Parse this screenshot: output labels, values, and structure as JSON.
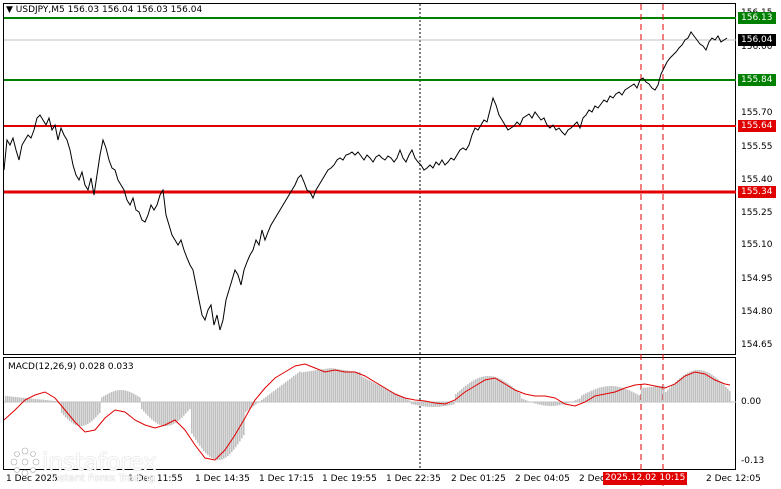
{
  "chart": {
    "symbol_label": "USDJPY,M5  156.03 156.04 156.03 156.04",
    "macd_label": "MACD(12,26,9) 0.028 0.033",
    "colors": {
      "price_line": "#000000",
      "support_line": "#e00000",
      "target_line": "#008000",
      "macd_histogram": "#c0c0c0",
      "macd_signal": "#e00000",
      "vertical_marker": "#e00000",
      "grid": "#000000"
    },
    "levels": [
      {
        "label": "156.13",
        "value": 156.13,
        "color": "#008000"
      },
      {
        "label": "155.84",
        "value": 155.84,
        "color": "#008000"
      },
      {
        "label": "155.64",
        "value": 155.64,
        "color": "#e00000"
      },
      {
        "label": "155.34",
        "value": 155.34,
        "color": "#e00000"
      }
    ],
    "current_price": {
      "label": "156.04",
      "value": 156.04
    },
    "price_axis_ticks": [
      "156.15",
      "156.00",
      "155.70",
      "155.55",
      "155.40",
      "155.25",
      "155.10",
      "154.95",
      "154.80",
      "154.65"
    ],
    "macd_axis_ticks": [
      "0.00",
      "-0.13"
    ],
    "time_labels": [
      "1 Dec 2025",
      "1 Dec 11:55",
      "1 Dec 14:35",
      "1 Dec 17:15",
      "1 Dec 19:55",
      "1 Dec 22:35",
      "2 Dec 01:25",
      "2 Dec 04:05",
      "2 Dec 06:45",
      "2 Dec 12:05"
    ],
    "highlighted_time": "2025.12.02 10:15",
    "watermark": {
      "name": "instaforex",
      "tagline": "Instant Forex Trading"
    }
  },
  "chart_data": {
    "type": "line",
    "title": "USDJPY,M5",
    "ylim": [
      154.6,
      156.2
    ],
    "series": [
      {
        "name": "USDJPY",
        "x": [
          0,
          6,
          12,
          18,
          24,
          30,
          36,
          42,
          48,
          54,
          60,
          66,
          72,
          78,
          84,
          90,
          96,
          102,
          108,
          114,
          120,
          126,
          132,
          138,
          144,
          150,
          156,
          162,
          168,
          174,
          180,
          186,
          192,
          198,
          204,
          210,
          216,
          222,
          228,
          234,
          240,
          246,
          252,
          258,
          264,
          270,
          276,
          282,
          288,
          294,
          300,
          306,
          312,
          318,
          324,
          330,
          336,
          342,
          348,
          354,
          360,
          366,
          372,
          378,
          384,
          390,
          396,
          402,
          408,
          414,
          420,
          426,
          432,
          438,
          444,
          450,
          456,
          462,
          468,
          474,
          480,
          486,
          492,
          498,
          504,
          510,
          516,
          522,
          528,
          534,
          540,
          546,
          552,
          558,
          564,
          570,
          576,
          582,
          588,
          594,
          600,
          606,
          612,
          618,
          624,
          630,
          636,
          642,
          648,
          654,
          660,
          666,
          672,
          678,
          684,
          690,
          696,
          702,
          708,
          714,
          720,
          726
        ],
        "values": [
          155.45,
          155.6,
          155.55,
          155.58,
          155.65,
          155.72,
          155.68,
          155.7,
          155.58,
          155.5,
          155.42,
          155.38,
          155.35,
          155.4,
          155.45,
          155.55,
          155.5,
          155.4,
          155.3,
          155.25,
          155.3,
          155.35,
          155.3,
          155.15,
          155.05,
          154.98,
          154.85,
          154.75,
          154.72,
          154.82,
          154.88,
          154.95,
          155.02,
          155.08,
          155.1,
          155.12,
          155.2,
          155.28,
          155.32,
          155.38,
          155.42,
          155.45,
          155.5,
          155.5,
          155.52,
          155.5,
          155.48,
          155.5,
          155.52,
          155.5,
          155.48,
          155.46,
          155.45,
          155.48,
          155.5,
          155.55,
          155.6,
          155.72,
          155.78,
          155.7,
          155.65,
          155.62,
          155.65,
          155.68,
          155.7,
          155.66,
          155.62,
          155.6,
          155.58,
          155.62,
          155.64,
          155.68,
          155.7,
          155.72,
          155.75,
          155.76,
          155.78,
          155.8,
          155.85,
          155.82,
          155.86,
          155.92,
          155.98,
          156.02,
          156.05,
          156.07,
          156.05,
          156.03,
          156.04,
          156.04,
          156.04,
          156.04,
          156.04,
          156.04,
          156.04,
          156.04,
          156.04,
          156.04,
          156.04,
          156.04,
          156.04,
          156.04,
          156.04,
          156.04,
          156.04,
          156.04,
          156.04,
          156.04,
          156.04,
          156.04,
          156.04,
          156.04,
          156.04,
          156.04,
          156.04,
          156.04,
          156.04,
          156.04,
          156.04,
          156.04,
          156.04,
          156.04
        ]
      }
    ]
  }
}
